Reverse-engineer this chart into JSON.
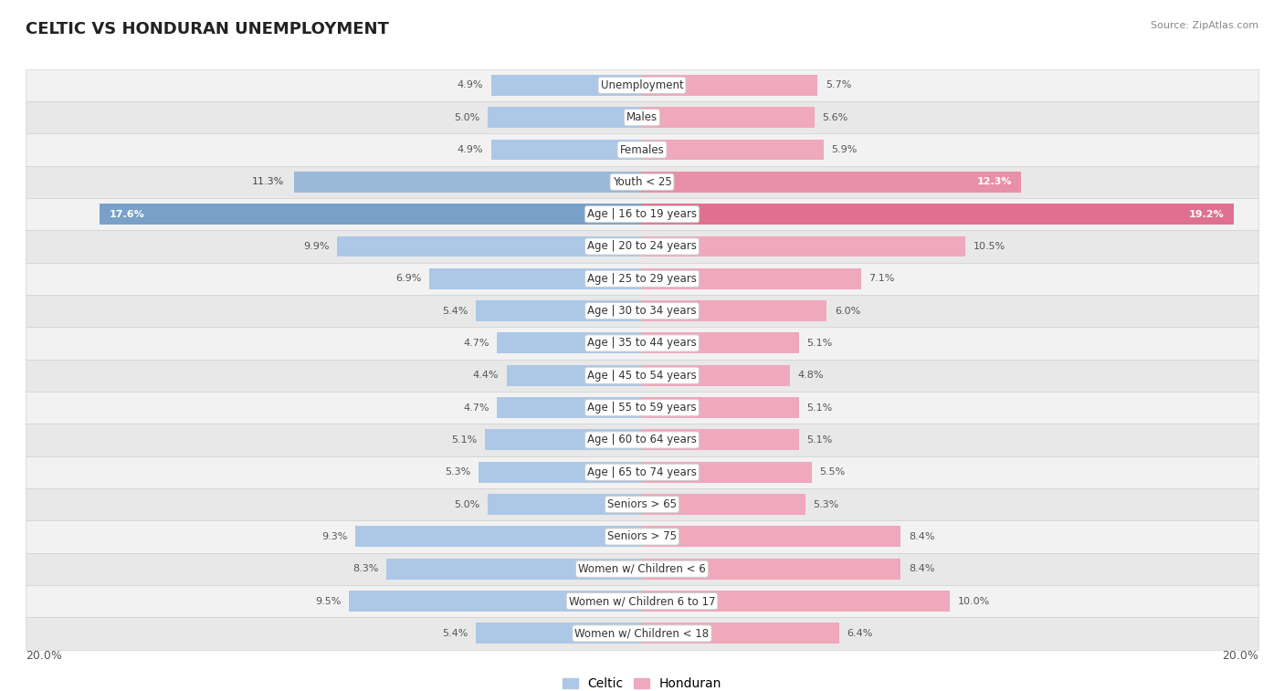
{
  "title": "CELTIC VS HONDURAN UNEMPLOYMENT",
  "source": "Source: ZipAtlas.com",
  "categories": [
    "Unemployment",
    "Males",
    "Females",
    "Youth < 25",
    "Age | 16 to 19 years",
    "Age | 20 to 24 years",
    "Age | 25 to 29 years",
    "Age | 30 to 34 years",
    "Age | 35 to 44 years",
    "Age | 45 to 54 years",
    "Age | 55 to 59 years",
    "Age | 60 to 64 years",
    "Age | 65 to 74 years",
    "Seniors > 65",
    "Seniors > 75",
    "Women w/ Children < 6",
    "Women w/ Children 6 to 17",
    "Women w/ Children < 18"
  ],
  "celtic": [
    4.9,
    5.0,
    4.9,
    11.3,
    17.6,
    9.9,
    6.9,
    5.4,
    4.7,
    4.4,
    4.7,
    5.1,
    5.3,
    5.0,
    9.3,
    8.3,
    9.5,
    5.4
  ],
  "honduran": [
    5.7,
    5.6,
    5.9,
    12.3,
    19.2,
    10.5,
    7.1,
    6.0,
    5.1,
    4.8,
    5.1,
    5.1,
    5.5,
    5.3,
    8.4,
    8.4,
    10.0,
    6.4
  ],
  "celtic_color_normal": "#adc8e6",
  "honduran_color_normal": "#f0a8bc",
  "celtic_color_youth": "#9ab8d8",
  "honduran_color_youth": "#e890aa",
  "celtic_color_1619": "#7aa0c8",
  "honduran_color_1619": "#e07090",
  "row_colors": [
    "#f2f2f2",
    "#e8e8e8"
  ],
  "axis_max": 20.0,
  "legend_celtic": "Celtic",
  "legend_honduran": "Honduran",
  "title_fontsize": 13,
  "label_fontsize": 8.5,
  "value_fontsize": 8.0,
  "bar_height": 0.65,
  "youth_idx": 3,
  "age1619_idx": 4,
  "inside_label_indices": [
    3,
    4
  ]
}
